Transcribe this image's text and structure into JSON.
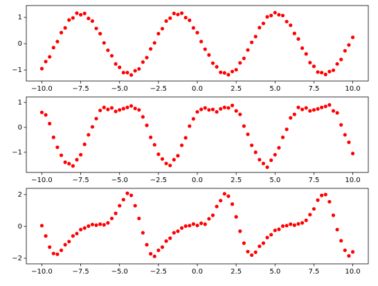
{
  "chart_data": [
    {
      "type": "scatter",
      "color": "#ff0000",
      "x": [
        -10,
        -9.75,
        -9.5,
        -9.25,
        -9,
        -8.75,
        -8.5,
        -8.25,
        -8,
        -7.75,
        -7.5,
        -7.25,
        -7,
        -6.75,
        -6.5,
        -6.25,
        -6,
        -5.75,
        -5.5,
        -5.25,
        -5,
        -4.75,
        -4.5,
        -4.25,
        -4,
        -3.75,
        -3.5,
        -3.25,
        -3,
        -2.75,
        -2.5,
        -2.25,
        -2,
        -1.75,
        -1.5,
        -1.25,
        -1,
        -0.75,
        -0.5,
        -0.25,
        0,
        0.25,
        0.5,
        0.75,
        1,
        1.25,
        1.5,
        1.75,
        2,
        2.25,
        2.5,
        2.75,
        3,
        3.25,
        3.5,
        3.75,
        4,
        4.25,
        4.5,
        4.75,
        5,
        5.25,
        5.5,
        5.75,
        6,
        6.25,
        6.5,
        6.75,
        7,
        7.25,
        7.5,
        7.75,
        8,
        8.25,
        8.5,
        8.75,
        9,
        9.25,
        9.5,
        9.75,
        10
      ],
      "values": [
        -0.95,
        -0.68,
        -0.5,
        -0.15,
        0.08,
        0.42,
        0.6,
        0.9,
        0.98,
        1.16,
        1.1,
        1.15,
        0.96,
        0.86,
        0.58,
        0.38,
        0.03,
        -0.25,
        -0.46,
        -0.77,
        -0.9,
        -1.1,
        -1.1,
        -1.19,
        -1.03,
        -0.96,
        -0.7,
        -0.53,
        -0.2,
        0.03,
        0.38,
        0.57,
        0.86,
        0.97,
        1.15,
        1.11,
        1.16,
        0.99,
        0.89,
        0.6,
        0.42,
        0.08,
        -0.21,
        -0.43,
        -0.74,
        -0.88,
        -1.09,
        -1.11,
        -1.18,
        -1.06,
        -0.99,
        -0.73,
        -0.56,
        -0.24,
        0.05,
        0.27,
        0.61,
        0.77,
        1.02,
        1.07,
        1.18,
        1.1,
        1.07,
        0.84,
        0.7,
        0.39,
        0.18,
        -0.17,
        -0.39,
        -0.72,
        -0.86,
        -1.08,
        -1.1,
        -1.17,
        -1.06,
        -1.01,
        -0.77,
        -0.6,
        -0.27,
        -0.05,
        0.24
      ],
      "xlim": [
        -11,
        11
      ],
      "ylim": [
        -1.42,
        1.45
      ],
      "xticks": [
        {
          "value": -10,
          "label": "−10.0"
        },
        {
          "value": -7.5,
          "label": "−7.5"
        },
        {
          "value": -5,
          "label": "−5.0"
        },
        {
          "value": -2.5,
          "label": "−2.5"
        },
        {
          "value": 0,
          "label": "0.0"
        },
        {
          "value": 2.5,
          "label": "2.5"
        },
        {
          "value": 5,
          "label": "5.0"
        },
        {
          "value": 7.5,
          "label": "7.5"
        },
        {
          "value": 10,
          "label": "10.0"
        }
      ],
      "yticks": [
        {
          "value": -1,
          "label": "−1"
        },
        0,
        1
      ]
    },
    {
      "type": "scatter",
      "color": "#ff0000",
      "x": [
        -10,
        -9.75,
        -9.5,
        -9.25,
        -9,
        -8.75,
        -8.5,
        -8.25,
        -8,
        -7.75,
        -7.5,
        -7.25,
        -7,
        -6.75,
        -6.5,
        -6.25,
        -6,
        -5.75,
        -5.5,
        -5.25,
        -5,
        -4.75,
        -4.5,
        -4.25,
        -4,
        -3.75,
        -3.5,
        -3.25,
        -3,
        -2.75,
        -2.5,
        -2.25,
        -2,
        -1.75,
        -1.5,
        -1.25,
        -1,
        -0.75,
        -0.5,
        -0.25,
        0,
        0.25,
        0.5,
        0.75,
        1,
        1.25,
        1.5,
        1.75,
        2,
        2.25,
        2.5,
        2.75,
        3,
        3.25,
        3.5,
        3.75,
        4,
        4.25,
        4.5,
        4.75,
        5,
        5.25,
        5.5,
        5.75,
        6,
        6.25,
        6.5,
        6.75,
        7,
        7.25,
        7.5,
        7.75,
        8,
        8.25,
        8.5,
        8.75,
        9,
        9.25,
        9.5,
        9.75,
        10
      ],
      "values": [
        0.6,
        0.5,
        0.15,
        -0.4,
        -0.8,
        -1.12,
        -1.4,
        -1.46,
        -1.55,
        -1.3,
        -1.1,
        -0.68,
        -0.3,
        0.02,
        0.35,
        0.68,
        0.8,
        0.72,
        0.78,
        0.64,
        0.7,
        0.75,
        0.8,
        0.86,
        0.76,
        0.7,
        0.42,
        0.08,
        -0.4,
        -0.7,
        -1.08,
        -1.27,
        -1.45,
        -1.53,
        -1.3,
        -1.14,
        -0.72,
        -0.42,
        0.05,
        0.34,
        0.62,
        0.72,
        0.78,
        0.7,
        0.72,
        0.62,
        0.74,
        0.8,
        0.78,
        0.88,
        0.66,
        0.52,
        0.05,
        -0.28,
        -0.72,
        -1.0,
        -1.3,
        -1.45,
        -1.6,
        -1.32,
        -1.1,
        -0.82,
        -0.4,
        -0.08,
        0.38,
        0.52,
        0.8,
        0.72,
        0.78,
        0.66,
        0.7,
        0.74,
        0.8,
        0.84,
        0.9,
        0.66,
        0.58,
        0.1,
        -0.3,
        -0.6,
        -1.05
      ],
      "xlim": [
        -11,
        11
      ],
      "ylim": [
        -1.81,
        1.22
      ],
      "xticks": [
        {
          "value": -10,
          "label": "−10.0"
        },
        {
          "value": -7.5,
          "label": "−7.5"
        },
        {
          "value": -5,
          "label": "−5.0"
        },
        {
          "value": -2.5,
          "label": "−2.5"
        },
        {
          "value": 0,
          "label": "0.0"
        },
        {
          "value": 2.5,
          "label": "2.5"
        },
        {
          "value": 5,
          "label": "5.0"
        },
        {
          "value": 7.5,
          "label": "7.5"
        },
        {
          "value": 10,
          "label": "10.0"
        }
      ],
      "yticks": [
        {
          "value": -1,
          "label": "−1"
        },
        0,
        1
      ]
    },
    {
      "type": "scatter",
      "color": "#ff0000",
      "x": [
        -10,
        -9.75,
        -9.5,
        -9.25,
        -9,
        -8.75,
        -8.5,
        -8.25,
        -8,
        -7.75,
        -7.5,
        -7.25,
        -7,
        -6.75,
        -6.5,
        -6.25,
        -6,
        -5.75,
        -5.5,
        -5.25,
        -5,
        -4.75,
        -4.5,
        -4.25,
        -4,
        -3.75,
        -3.5,
        -3.25,
        -3,
        -2.75,
        -2.5,
        -2.25,
        -2,
        -1.75,
        -1.5,
        -1.25,
        -1,
        -0.75,
        -0.5,
        -0.25,
        0,
        0.25,
        0.5,
        0.75,
        1,
        1.25,
        1.5,
        1.75,
        2,
        2.25,
        2.5,
        2.75,
        3,
        3.25,
        3.5,
        3.75,
        4,
        4.25,
        4.5,
        4.75,
        5,
        5.25,
        5.5,
        5.75,
        6,
        6.25,
        6.5,
        6.75,
        7,
        7.25,
        7.5,
        7.75,
        8,
        8.25,
        8.5,
        8.75,
        9,
        9.25,
        9.5,
        9.75,
        10
      ],
      "values": [
        0.05,
        -0.6,
        -1.3,
        -1.7,
        -1.75,
        -1.5,
        -1.15,
        -0.95,
        -0.6,
        -0.45,
        -0.2,
        -0.1,
        0.02,
        0.12,
        0.08,
        0.14,
        0.1,
        0.22,
        0.5,
        0.82,
        1.3,
        1.68,
        2.08,
        1.95,
        1.3,
        0.5,
        -0.4,
        -1.15,
        -1.72,
        -1.88,
        -1.5,
        -1.3,
        -0.92,
        -0.74,
        -0.4,
        -0.3,
        -0.1,
        0.02,
        0.05,
        0.15,
        0.06,
        0.2,
        0.14,
        0.48,
        0.7,
        1.25,
        1.62,
        2.05,
        1.9,
        1.4,
        0.6,
        -0.3,
        -1.05,
        -1.58,
        -1.8,
        -1.62,
        -1.25,
        -1.05,
        -0.7,
        -0.52,
        -0.25,
        -0.18,
        0.02,
        0.05,
        0.14,
        0.08,
        0.16,
        0.22,
        0.38,
        0.74,
        1.1,
        1.65,
        1.95,
        2.0,
        1.55,
        0.7,
        -0.2,
        -0.9,
        -1.5,
        -1.85,
        -1.6
      ],
      "xlim": [
        -11,
        11
      ],
      "ylim": [
        -2.35,
        2.39
      ],
      "xticks": [
        {
          "value": -10,
          "label": "−10.0"
        },
        {
          "value": -7.5,
          "label": "−7.5"
        },
        {
          "value": -5,
          "label": "−5.0"
        },
        {
          "value": -2.5,
          "label": "−2.5"
        },
        {
          "value": 0,
          "label": "0.0"
        },
        {
          "value": 2.5,
          "label": "2.5"
        },
        {
          "value": 5,
          "label": "5.0"
        },
        {
          "value": 7.5,
          "label": "7.5"
        },
        {
          "value": 10,
          "label": "10.0"
        }
      ],
      "yticks": [
        {
          "value": -2,
          "label": "−2"
        },
        0,
        2
      ]
    }
  ]
}
